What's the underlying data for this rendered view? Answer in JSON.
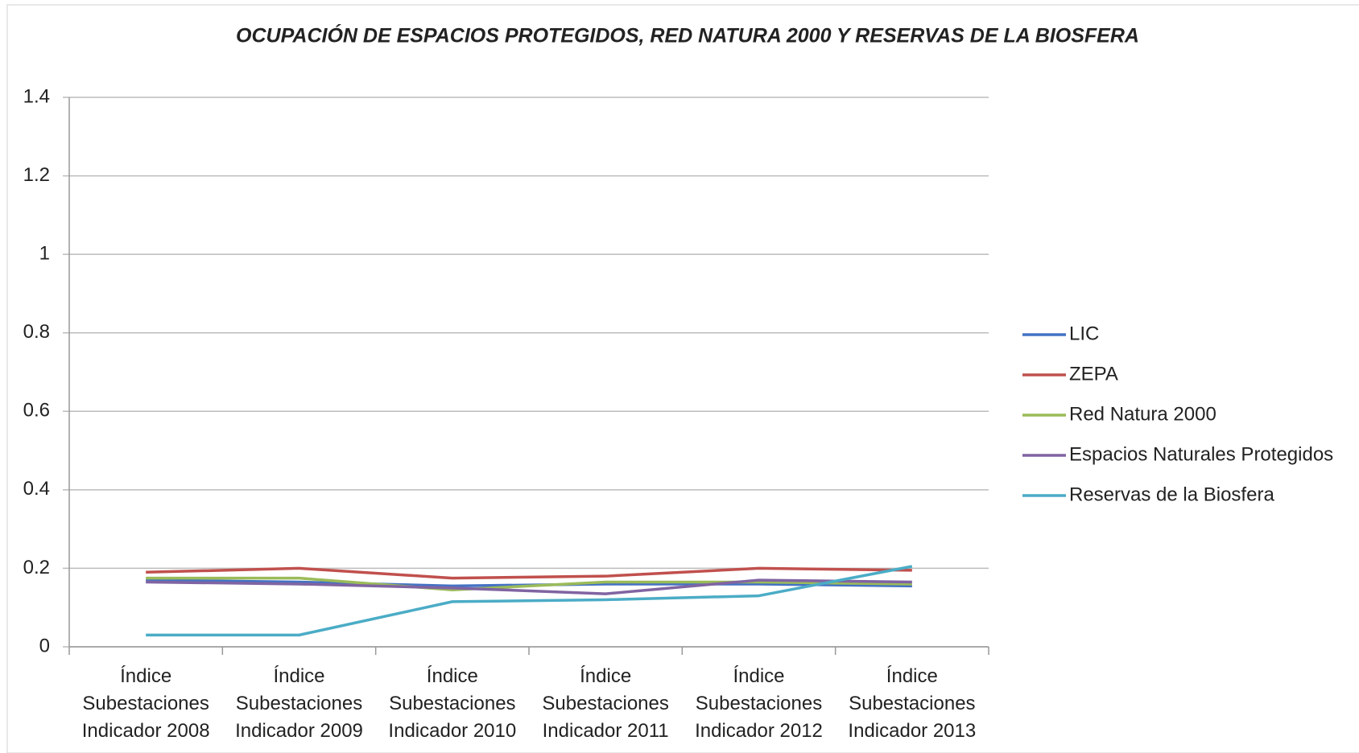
{
  "chart_data": {
    "type": "line",
    "title": "OCUPACIÓN DE ESPACIOS PROTEGIDOS, RED NATURA 2000 Y RESERVAS DE LA BIOSFERA",
    "categories": [
      "Índice Subestaciones Indicador 2008",
      "Índice Subestaciones Indicador 2009",
      "Índice Subestaciones Indicador 2010",
      "Índice Subestaciones Indicador 2011",
      "Índice Subestaciones Indicador 2012",
      "Índice Subestaciones Indicador 2013"
    ],
    "series": [
      {
        "name": "LIC",
        "color": "#4472c4",
        "values": [
          0.17,
          0.165,
          0.155,
          0.16,
          0.16,
          0.155
        ]
      },
      {
        "name": "ZEPA",
        "color": "#c0504d",
        "values": [
          0.19,
          0.2,
          0.175,
          0.18,
          0.2,
          0.195
        ]
      },
      {
        "name": "Red Natura 2000",
        "color": "#9bbb59",
        "values": [
          0.175,
          0.175,
          0.145,
          0.165,
          0.165,
          0.16
        ]
      },
      {
        "name": "Espacios Naturales Protegidos",
        "color": "#8064a2",
        "values": [
          0.165,
          0.16,
          0.15,
          0.135,
          0.17,
          0.165
        ]
      },
      {
        "name": "Reservas de la Biosfera",
        "color": "#4bacc6",
        "values": [
          0.03,
          0.03,
          0.115,
          0.12,
          0.13,
          0.205
        ]
      }
    ],
    "ylim": [
      0,
      1.4
    ],
    "yticks": [
      0,
      0.2,
      0.4,
      0.6,
      0.8,
      1,
      1.2,
      1.4
    ],
    "grid": true,
    "legend": "right"
  }
}
